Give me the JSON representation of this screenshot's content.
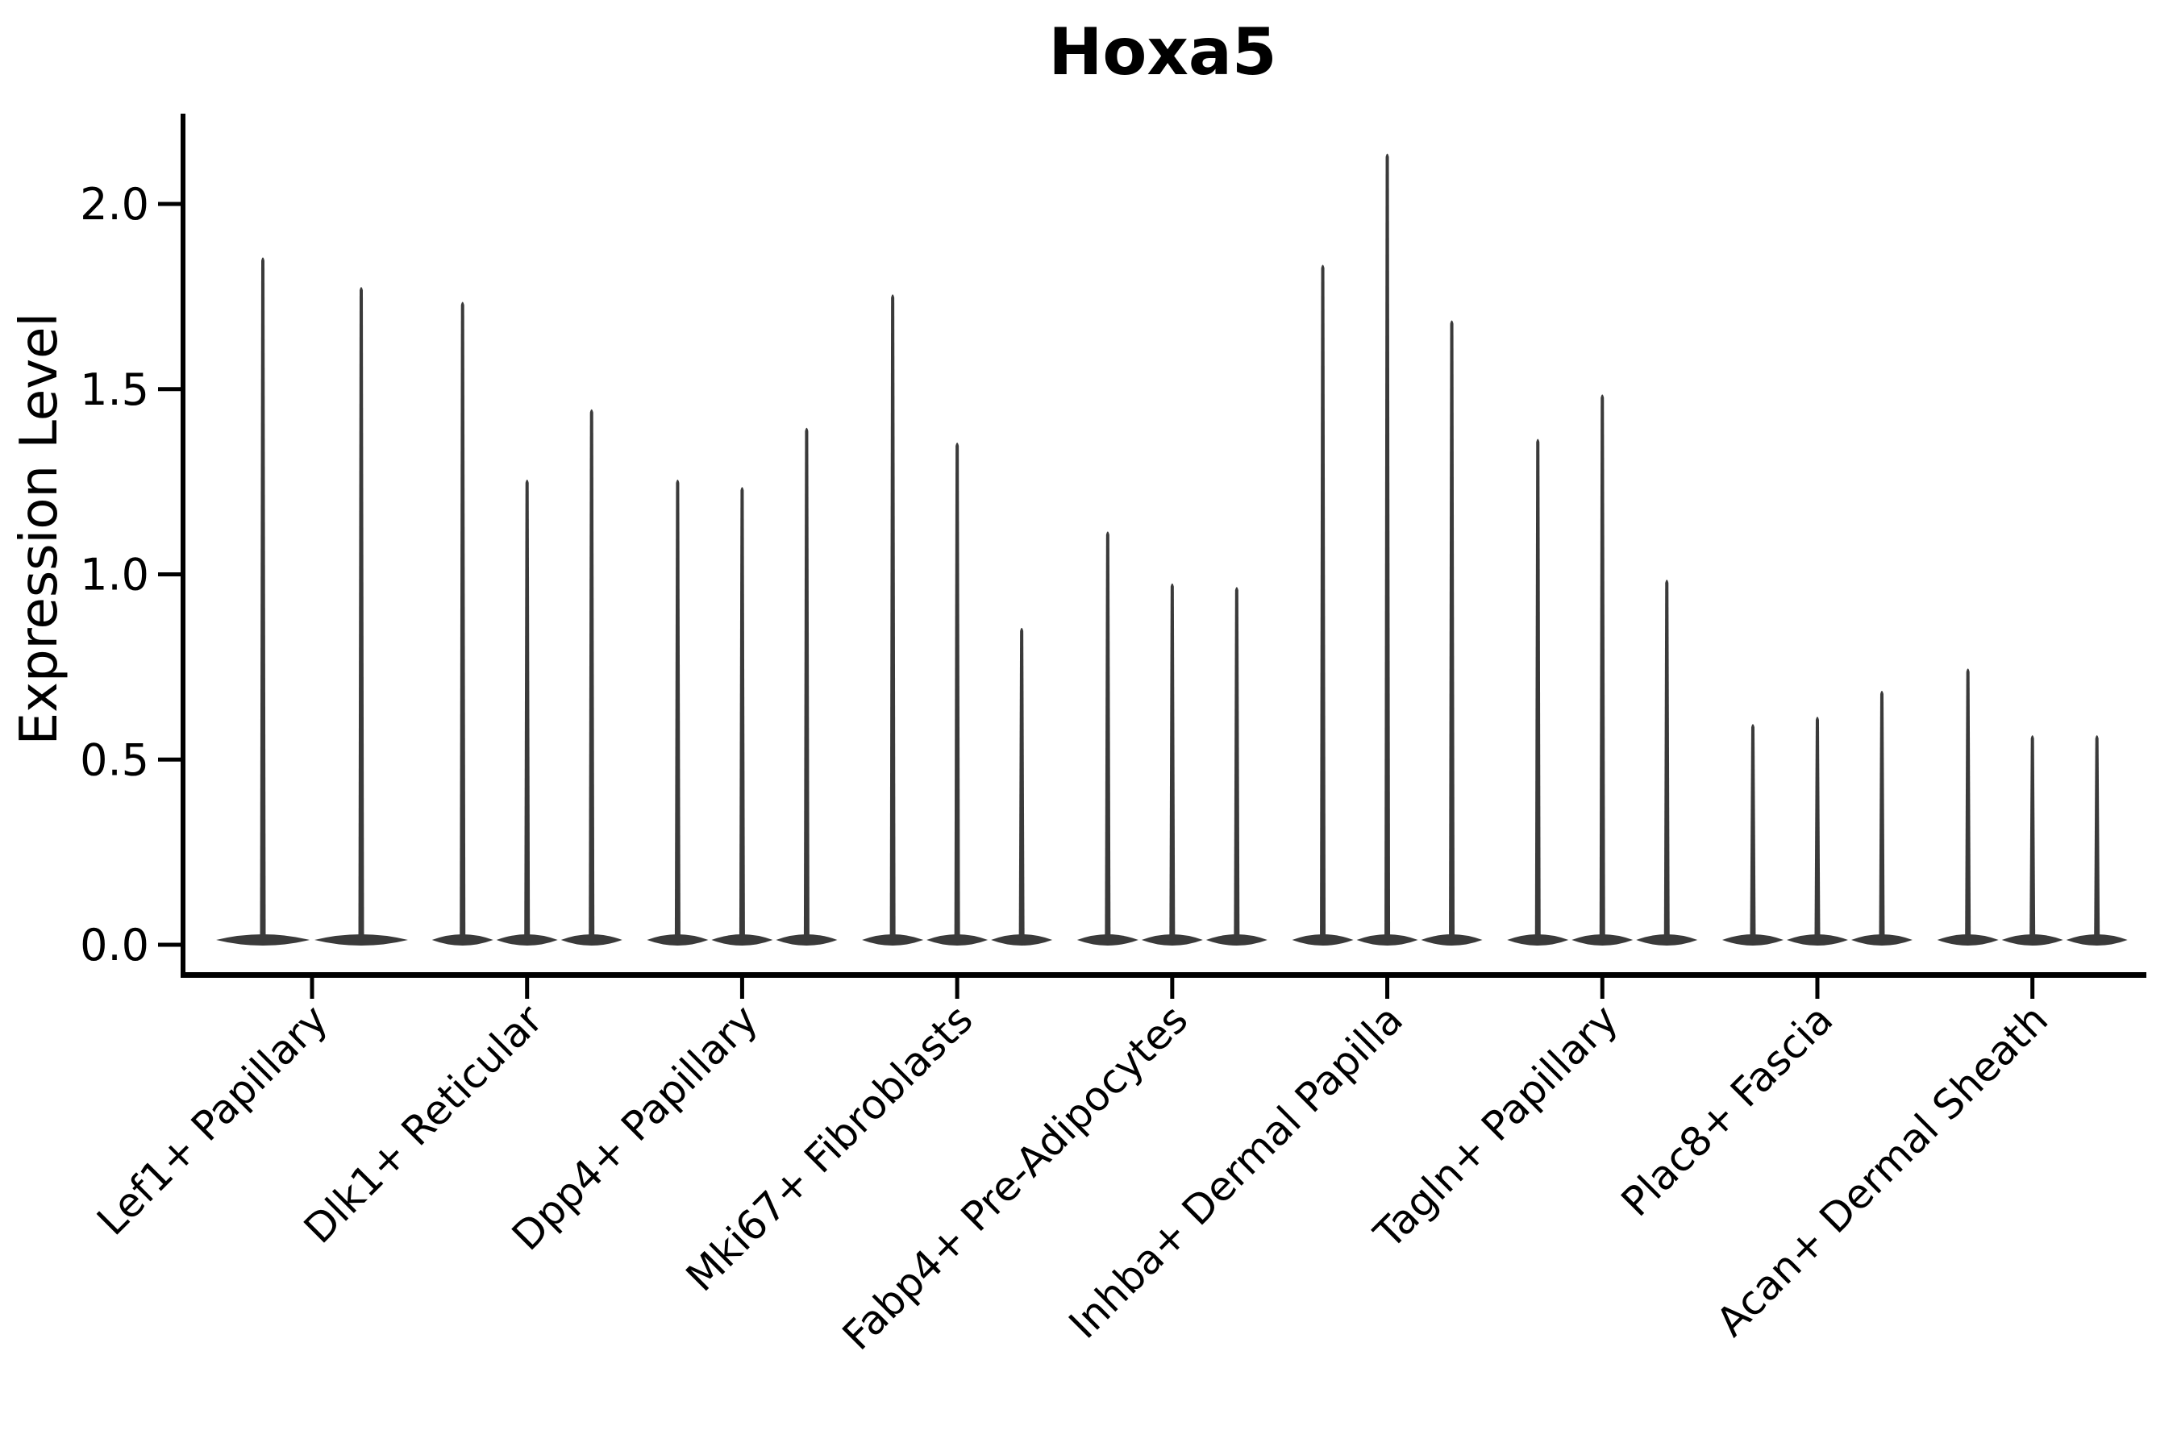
{
  "page": {
    "background_color": "#ffffff"
  },
  "chart_data": {
    "type": "violin",
    "title": "Hoxa5",
    "ylabel": "Expression Level",
    "xlabel": "",
    "grid": false,
    "legend": "none",
    "ylim": [
      -0.08,
      2.24
    ],
    "yticks": [
      {
        "value": 0.0,
        "label": "0.0"
      },
      {
        "value": 0.5,
        "label": "0.5"
      },
      {
        "value": 1.0,
        "label": "1.0"
      },
      {
        "value": 1.5,
        "label": "1.5"
      },
      {
        "value": 2.0,
        "label": "2.0"
      }
    ],
    "categories": [
      "Lef1+ Papillary",
      "Dlk1+ Reticular",
      "Dpp4+ Papillary",
      "Mki67+ Fibroblasts",
      "Fabp4+ Pre-Adipocytes",
      "Inhba+ Dermal Papilla",
      "Tagln+ Papillary",
      "Plac8+ Fascia",
      "Acan+ Dermal Sheath"
    ],
    "groups": [
      {
        "category": "Lef1+ Papillary",
        "violin_maxima": [
          1.86,
          1.78
        ]
      },
      {
        "category": "Dlk1+ Reticular",
        "violin_maxima": [
          1.74,
          1.26,
          1.45
        ]
      },
      {
        "category": "Dpp4+ Papillary",
        "violin_maxima": [
          1.26,
          1.24,
          1.4
        ]
      },
      {
        "category": "Mki67+ Fibroblasts",
        "violin_maxima": [
          1.76,
          1.36,
          0.86
        ]
      },
      {
        "category": "Fabp4+ Pre-Adipocytes",
        "violin_maxima": [
          1.12,
          0.98,
          0.97
        ]
      },
      {
        "category": "Inhba+ Dermal Papilla",
        "violin_maxima": [
          1.84,
          2.14,
          1.69
        ]
      },
      {
        "category": "Tagln+ Papillary",
        "violin_maxima": [
          1.37,
          1.49,
          0.99
        ]
      },
      {
        "category": "Plac8+ Fascia",
        "violin_maxima": [
          0.6,
          0.62,
          0.69
        ]
      },
      {
        "category": "Acan+ Dermal Sheath",
        "violin_maxima": [
          0.75,
          0.57,
          0.57
        ]
      }
    ],
    "violin_baseline_value": 0.0,
    "violin_color": "#3a3a3a",
    "axis_color": "#000000",
    "text_color": "#000000",
    "x_tick_label_rotation_deg": 45
  }
}
